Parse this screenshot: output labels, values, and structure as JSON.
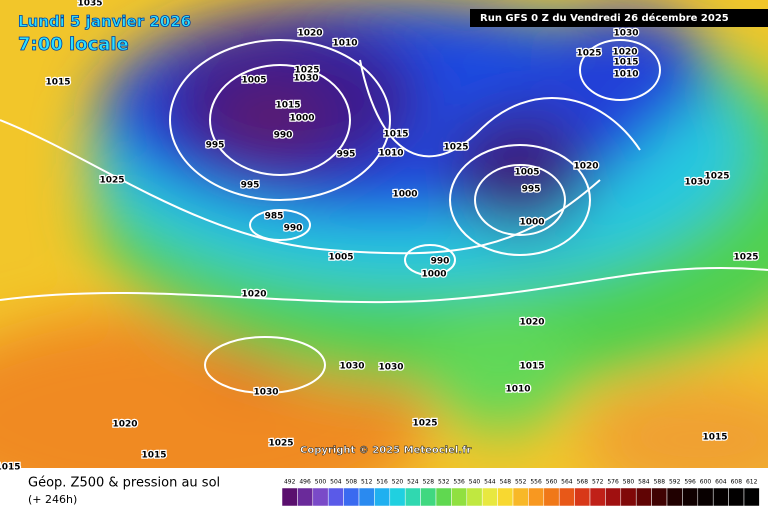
{
  "header": {
    "date": "Lundi 5 janvier 2026",
    "time": "7:00 locale",
    "run": "Run GFS 0 Z du Vendredi 26 décembre 2025"
  },
  "copyright": "Copyright © 2025 Meteociel.fr",
  "footer": {
    "title": "Géop. Z500 & pression au sol",
    "lead": "(+ 246h)"
  },
  "scale": {
    "ticks": [
      492,
      496,
      500,
      504,
      508,
      512,
      516,
      520,
      524,
      528,
      532,
      536,
      540,
      544,
      548,
      552,
      556,
      560,
      564,
      568,
      572,
      576,
      580,
      584,
      588,
      592,
      596,
      600,
      604,
      608,
      612
    ]
  },
  "isobar_labels": [
    "1035",
    "1015",
    "1020",
    "1010",
    "1025",
    "1030",
    "1005",
    "1015",
    "1000",
    "990",
    "995",
    "995",
    "995",
    "1025",
    "985",
    "990",
    "1015",
    "1010",
    "1025",
    "1000",
    "1005",
    "995",
    "1000",
    "1020",
    "1030",
    "1025",
    "1025",
    "1005",
    "990",
    "1000",
    "1020",
    "1020",
    "1015",
    "1030",
    "1030",
    "1010",
    "1030",
    "1020",
    "1025",
    "1015",
    "1025",
    "1015",
    "1015",
    "1025",
    "1030",
    "1020",
    "1015",
    "1010"
  ]
}
